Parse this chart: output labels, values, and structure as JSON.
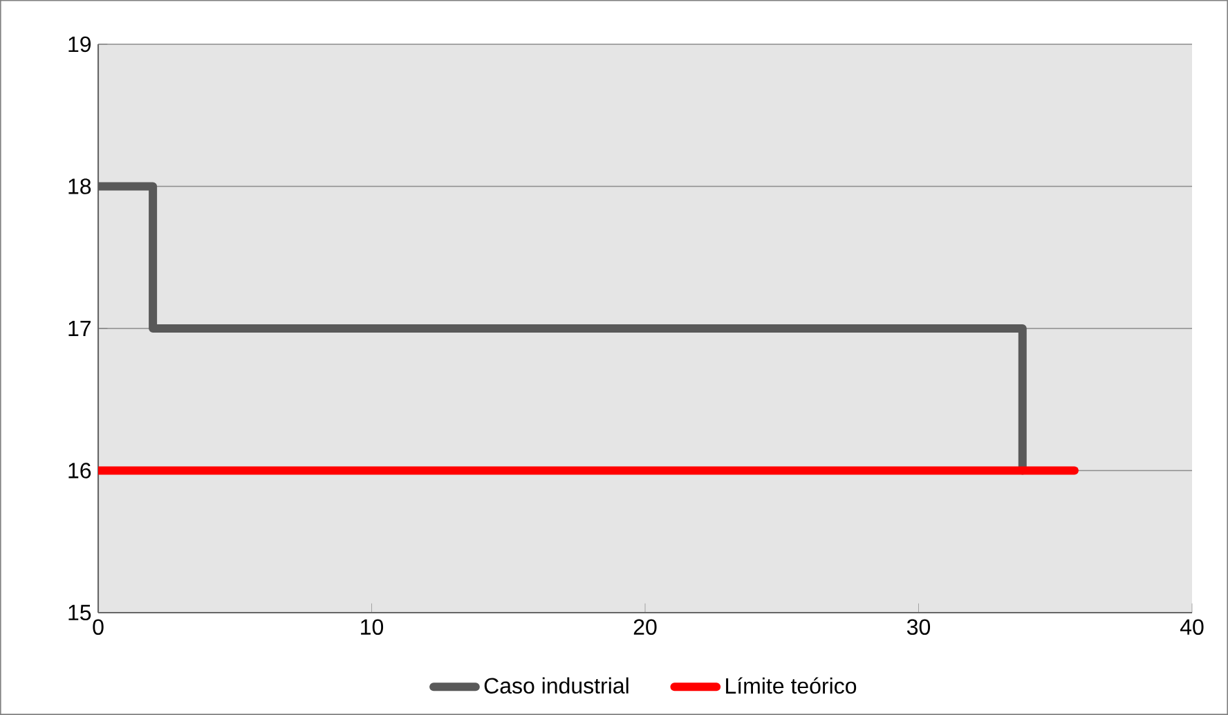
{
  "chart_data": {
    "type": "line",
    "xlim": [
      0,
      40
    ],
    "xticks": [
      0,
      10,
      20,
      30,
      40
    ],
    "ylim": [
      15,
      19
    ],
    "yticks": [
      15,
      16,
      17,
      18,
      19
    ],
    "grid": "y",
    "legend": "bottom",
    "marker": "none",
    "line_style": "solid",
    "series": [
      {
        "name": "Caso industrial",
        "type": "step",
        "color": "#595959",
        "x": [
          0,
          2,
          33.8
        ],
        "values": [
          18,
          17,
          16
        ]
      },
      {
        "name": "Límite teórico",
        "color": "#ff0000",
        "x": [
          0,
          35.7
        ],
        "values": [
          16,
          16
        ]
      }
    ]
  }
}
